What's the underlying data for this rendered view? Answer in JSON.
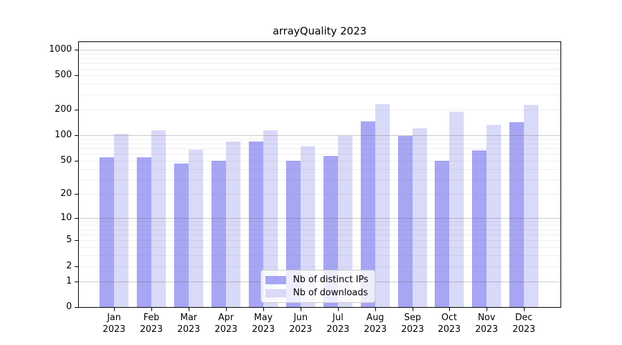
{
  "chart_data": {
    "type": "bar",
    "title": "arrayQuality 2023",
    "categories": [
      "Jan 2023",
      "Feb 2023",
      "Mar 2023",
      "Apr 2023",
      "May 2023",
      "Jun 2023",
      "Jul 2023",
      "Aug 2023",
      "Sep 2023",
      "Oct 2023",
      "Nov 2023",
      "Dec 2023"
    ],
    "series": [
      {
        "name": "Nb of distinct IPs",
        "color": "#a6a6f4",
        "values": [
          55,
          55,
          46,
          50,
          85,
          50,
          57,
          144,
          97,
          50,
          66,
          142
        ]
      },
      {
        "name": "Nb of downloads",
        "color": "#d9d9f8",
        "values": [
          103,
          113,
          67,
          84,
          113,
          74,
          98,
          230,
          121,
          188,
          133,
          226
        ]
      }
    ],
    "xlabel": "",
    "ylabel": "",
    "yscale": "log10(1+x)",
    "y_ticks": [
      0,
      1,
      2,
      5,
      10,
      20,
      50,
      100,
      200,
      500,
      1000
    ],
    "ylim": [
      0,
      1230
    ],
    "grid": "horizontal log grid: major lines at decades, minor lines at 2-9 mantissas, drawn over bars",
    "legend_position": "lower center inside plot"
  },
  "colors": {
    "background": "#ffffff",
    "axis": "#000000",
    "text": "#000000",
    "major_grid": "rgba(100,100,100,0.35)",
    "minor_grid": "rgba(120,120,120,0.12)",
    "legend_border": "#cccccc",
    "legend_background": "rgba(255,255,255,0.8)"
  }
}
